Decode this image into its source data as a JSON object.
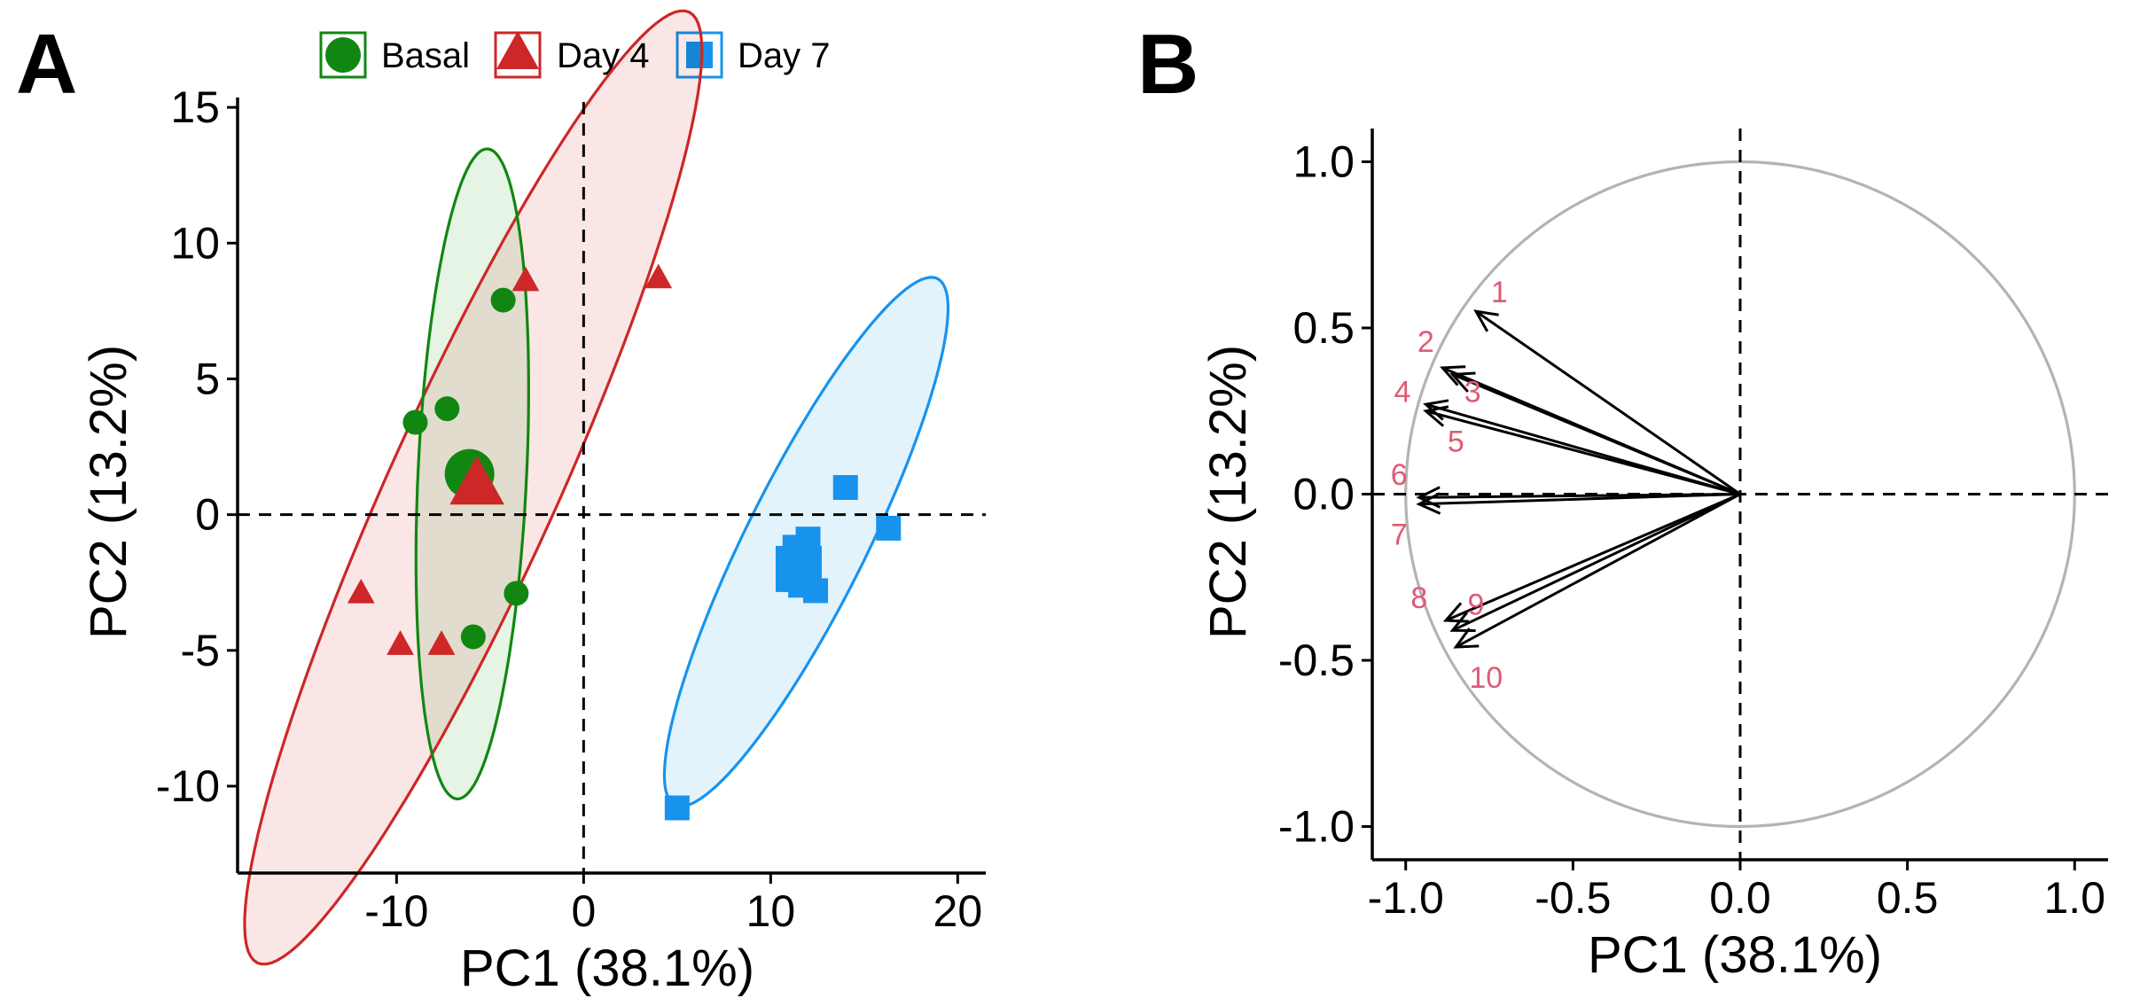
{
  "colors": {
    "basal": "#118711",
    "day4": "#cd2727",
    "day7": "#1793ee",
    "basal_fill": "#e4f3e4",
    "day4_fill": "#fbe5e5",
    "day7_fill": "#e2f2fc",
    "overlap_fill": "#ddd9c8",
    "circle": "#b3b3b3",
    "var_label": "#e05a76",
    "axis": "#000000"
  },
  "chart_data": [
    {
      "type": "scatter",
      "panel_label": "A",
      "xlabel": "PC1 (38.1%)",
      "ylabel": "PC2 (13.2%)",
      "xlim": [
        -18.5,
        21.5
      ],
      "ylim": [
        -13.2,
        15.2
      ],
      "xticks": [
        -10,
        0,
        10,
        20
      ],
      "xtick_labels": [
        "-10",
        "0",
        "10",
        "20"
      ],
      "yticks": [
        -10,
        -5,
        0,
        5,
        10,
        15
      ],
      "ytick_labels": [
        "-10",
        "-5",
        "0",
        "5",
        "10",
        "15"
      ],
      "legend": [
        {
          "name": "Basal",
          "shape": "circle"
        },
        {
          "name": "Day 4",
          "shape": "triangle"
        },
        {
          "name": "Day 7",
          "shape": "square"
        }
      ],
      "legend_position": "top",
      "ellipse_order": [
        "Basal",
        "Day 4",
        "Day 7"
      ],
      "series": [
        {
          "name": "Basal",
          "shape": "circle",
          "points": [
            [
              -4.3,
              7.9
            ],
            [
              -9.0,
              3.4
            ],
            [
              -7.3,
              3.9
            ],
            [
              -3.6,
              -2.9
            ],
            [
              -5.9,
              -4.5
            ]
          ],
          "centroid": [
            -6.1,
            1.5
          ],
          "ellipse": {
            "cx": -5.95,
            "cy": 1.5,
            "rx": 12.0,
            "ry": 2.9,
            "angle_deg": 86
          }
        },
        {
          "name": "Day 4",
          "shape": "triangle",
          "points": [
            [
              -3.1,
              8.6
            ],
            [
              4.0,
              8.7
            ],
            [
              -11.9,
              -2.9
            ],
            [
              -9.8,
              -4.8
            ],
            [
              -7.6,
              -4.8
            ]
          ],
          "centroid": [
            -5.7,
            1.1
          ],
          "ellipse": {
            "cx": -5.9,
            "cy": 1.0,
            "rx": 21.0,
            "ry": 4.1,
            "angle_deg": 56
          }
        },
        {
          "name": "Day 7",
          "shape": "square",
          "points": [
            [
              14.0,
              1.0
            ],
            [
              16.3,
              -0.5
            ],
            [
              12.0,
              -0.9
            ],
            [
              11.3,
              -1.2
            ],
            [
              11.3,
              -2.0
            ],
            [
              11.6,
              -2.6
            ],
            [
              12.4,
              -2.8
            ],
            [
              5.0,
              -10.8
            ]
          ],
          "centroid": [
            11.5,
            -2.0
          ],
          "ellipse": {
            "cx": 11.9,
            "cy": -1.0,
            "rx": 12.0,
            "ry": 2.9,
            "angle_deg": 53
          }
        }
      ]
    },
    {
      "type": "scatter",
      "subtype": "correlation-circle",
      "panel_label": "B",
      "xlabel": "PC1 (38.1%)",
      "ylabel": "PC2 (13.2%)",
      "xlim": [
        -1.1,
        1.1
      ],
      "ylim": [
        -1.1,
        1.1
      ],
      "xticks": [
        -1.0,
        -0.5,
        0.0,
        0.5,
        1.0
      ],
      "xtick_labels": [
        "-1.0",
        "-0.5",
        "0.0",
        "0.5",
        "1.0"
      ],
      "yticks": [
        -1.0,
        -0.5,
        0.0,
        0.5,
        1.0
      ],
      "ytick_labels": [
        "-1.0",
        "-0.5",
        "0.0",
        "0.5",
        "1.0"
      ],
      "unit_circle_radius": 1.0,
      "vectors": [
        {
          "label": "1",
          "x": -0.79,
          "y": 0.55,
          "lx": -0.72,
          "ly": 0.61
        },
        {
          "label": "2",
          "x": -0.89,
          "y": 0.38,
          "lx": -0.94,
          "ly": 0.46
        },
        {
          "label": "3",
          "x": -0.86,
          "y": 0.36,
          "lx": -0.8,
          "ly": 0.31
        },
        {
          "label": "4",
          "x": -0.94,
          "y": 0.27,
          "lx": -1.01,
          "ly": 0.31
        },
        {
          "label": "5",
          "x": -0.94,
          "y": 0.25,
          "lx": -0.85,
          "ly": 0.16
        },
        {
          "label": "6",
          "x": -0.96,
          "y": -0.01,
          "lx": -1.02,
          "ly": 0.06
        },
        {
          "label": "7",
          "x": -0.96,
          "y": -0.03,
          "lx": -1.02,
          "ly": -0.12
        },
        {
          "label": "8",
          "x": -0.88,
          "y": -0.38,
          "lx": -0.96,
          "ly": -0.31
        },
        {
          "label": "9",
          "x": -0.86,
          "y": -0.41,
          "lx": -0.79,
          "ly": -0.33
        },
        {
          "label": "10",
          "x": -0.85,
          "y": -0.46,
          "lx": -0.76,
          "ly": -0.55
        }
      ]
    }
  ]
}
